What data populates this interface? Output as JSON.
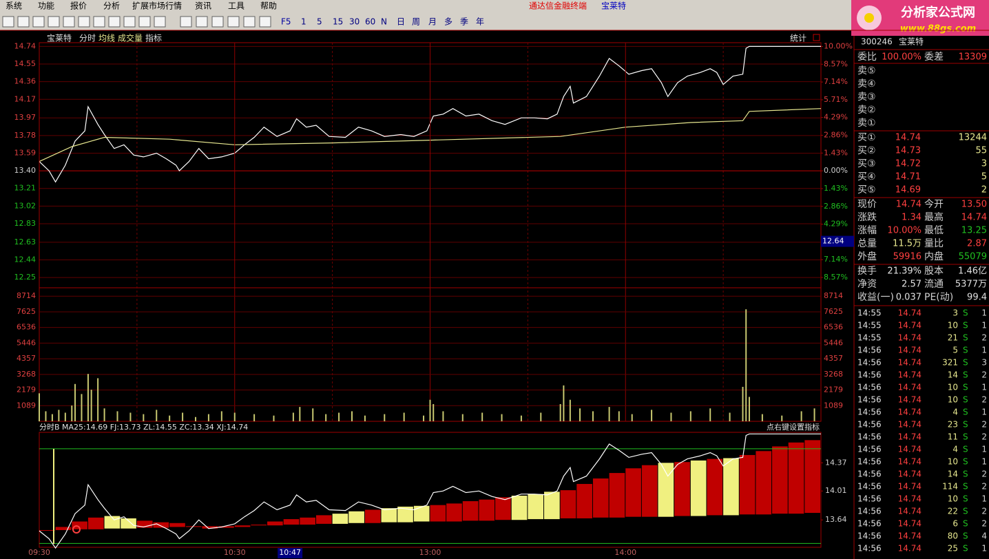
{
  "menu": [
    "系统",
    "功能",
    "报价",
    "分析",
    "扩展市场行情",
    "资讯",
    "工具",
    "帮助"
  ],
  "window_title": {
    "app": "通达信金融终端",
    "stock": "宝莱特"
  },
  "toolbar": [
    "F5",
    "1",
    "5",
    "15",
    "30",
    "60",
    "N",
    "日",
    "周",
    "月",
    "多",
    "季",
    "年"
  ],
  "chart_header": {
    "stock": "宝莱特",
    "items": [
      "分时",
      "均线",
      "成交量",
      "指标"
    ],
    "stats": "统计"
  },
  "chart_data": [
    {
      "type": "line",
      "xlim": [
        0,
        240
      ],
      "xticks": [
        {
          "value": 0,
          "label": "09:30"
        },
        {
          "value": 60,
          "label": "10:30"
        },
        {
          "value": 120,
          "label": "13:00"
        },
        {
          "value": 180,
          "label": "14:00"
        }
      ],
      "ylim": [
        12.14,
        14.78
      ],
      "yticks": [
        14.74,
        14.55,
        14.36,
        14.17,
        13.97,
        13.78,
        13.59,
        {
          "value": 13.4,
          "label": "13.40"
        },
        13.21,
        13.02,
        12.83,
        12.63,
        12.44,
        12.25
      ],
      "y2lim": [
        -9.4,
        10.3
      ],
      "y2ticks": [
        {
          "value": 10,
          "label": "10.00%"
        },
        {
          "value": 8.57,
          "label": "8.57%"
        },
        {
          "value": 7.14,
          "label": "7.14%"
        },
        {
          "value": 5.71,
          "label": "5.71%"
        },
        {
          "value": 4.29,
          "label": "4.29%"
        },
        {
          "value": 2.86,
          "label": "2.86%"
        },
        {
          "value": 1.43,
          "label": "1.43%"
        },
        {
          "value": 0,
          "label": "0.00%"
        },
        {
          "value": -1.43,
          "label": "1.43%"
        },
        {
          "value": -2.86,
          "label": "2.86%"
        },
        {
          "value": -4.29,
          "label": "4.29%"
        },
        {
          "value": -5.71,
          "label": "5.71%"
        },
        {
          "value": -7.14,
          "label": "7.14%"
        },
        {
          "value": -8.57,
          "label": "8.57%"
        }
      ],
      "series": [
        {
          "color": "#ffffff",
          "x": [
            0,
            3,
            5,
            8,
            11,
            14,
            15,
            18,
            20,
            23,
            26,
            29,
            32,
            36,
            39,
            42,
            43,
            46,
            49,
            52,
            56,
            60,
            63,
            66,
            69,
            73,
            77,
            79,
            82,
            85,
            89,
            94,
            98,
            102,
            106,
            111,
            115,
            119,
            121,
            124,
            127,
            131,
            135,
            139,
            143,
            148,
            152,
            156,
            159,
            161,
            163,
            164,
            168,
            172,
            175,
            178,
            181,
            185,
            188,
            191,
            193,
            196,
            199,
            203,
            206,
            208,
            210,
            213,
            216,
            217,
            218,
            240
          ],
          "values": [
            13.5,
            13.4,
            13.28,
            13.46,
            13.72,
            13.83,
            14.09,
            13.9,
            13.79,
            13.64,
            13.68,
            13.57,
            13.55,
            13.59,
            13.53,
            13.46,
            13.4,
            13.5,
            13.64,
            13.53,
            13.55,
            13.59,
            13.68,
            13.76,
            13.87,
            13.77,
            13.83,
            13.96,
            13.87,
            13.89,
            13.77,
            13.76,
            13.87,
            13.83,
            13.77,
            13.79,
            13.77,
            13.83,
            13.99,
            14.01,
            14.07,
            13.99,
            14.01,
            13.94,
            13.9,
            13.97,
            13.97,
            13.96,
            14.01,
            14.2,
            14.31,
            14.13,
            14.2,
            14.42,
            14.61,
            14.53,
            14.44,
            14.48,
            14.5,
            14.35,
            14.2,
            14.35,
            14.42,
            14.46,
            14.5,
            14.46,
            14.33,
            14.42,
            14.44,
            14.72,
            14.74,
            14.74
          ]
        },
        {
          "color": "#e8e890",
          "x": [
            0,
            10,
            20,
            40,
            60,
            90,
            120,
            160,
            180,
            200,
            216,
            218,
            240
          ],
          "values": [
            13.5,
            13.66,
            13.76,
            13.74,
            13.68,
            13.7,
            13.73,
            13.77,
            13.87,
            13.92,
            13.94,
            14.04,
            14.07
          ]
        }
      ],
      "cursor_price": 12.64,
      "cursor_time": {
        "value": 77,
        "label": "10:47"
      }
    },
    {
      "type": "bar",
      "xlim": [
        0,
        240
      ],
      "ylim": [
        0,
        9300
      ],
      "yticks": [
        8714,
        7625,
        6536,
        5446,
        4357,
        3268,
        2179,
        1089
      ],
      "color": "#c8c870",
      "x": [
        0,
        2,
        4,
        6,
        8,
        10,
        11,
        13,
        15,
        16,
        18,
        20,
        24,
        28,
        32,
        36,
        40,
        44,
        48,
        52,
        56,
        60,
        66,
        72,
        78,
        80,
        84,
        88,
        92,
        96,
        100,
        106,
        112,
        118,
        120,
        121,
        124,
        130,
        136,
        142,
        148,
        154,
        160,
        161,
        163,
        166,
        170,
        175,
        178,
        182,
        188,
        194,
        200,
        206,
        212,
        216,
        217,
        218,
        222,
        228,
        234,
        238
      ],
      "values": [
        1950,
        700,
        500,
        800,
        600,
        1100,
        2600,
        1900,
        3300,
        2200,
        3000,
        900,
        700,
        600,
        500,
        800,
        400,
        600,
        300,
        500,
        700,
        600,
        500,
        400,
        600,
        1000,
        900,
        500,
        600,
        700,
        400,
        500,
        600,
        400,
        1500,
        1200,
        700,
        500,
        600,
        500,
        400,
        600,
        1200,
        2500,
        1500,
        900,
        700,
        1000,
        700,
        500,
        800,
        600,
        700,
        900,
        600,
        2400,
        7800,
        1700,
        500,
        400,
        700,
        900
      ]
    },
    {
      "type": "bar",
      "title": "分时B MA25:14.69 FJ:13.73 ZL:14.55 ZC:13.34 XJ:14.74",
      "note": "点右键设置指标",
      "xlim": [
        0,
        240
      ],
      "ylim": [
        13.29,
        14.76
      ],
      "yticks": [
        14.37,
        14.01,
        13.64
      ],
      "hlines": [
        14.55,
        13.34
      ],
      "x": [
        0,
        5,
        10,
        15,
        20,
        25,
        30,
        35,
        40,
        45,
        50,
        55,
        60,
        65,
        70,
        75,
        80,
        85,
        90,
        95,
        100,
        105,
        110,
        115,
        120,
        125,
        130,
        135,
        140,
        145,
        150,
        155,
        160,
        165,
        170,
        175,
        180,
        185,
        190,
        195,
        200,
        205,
        210,
        215,
        220,
        225,
        230,
        235
      ],
      "values": [
        13.51,
        13.55,
        13.62,
        13.67,
        13.69,
        13.66,
        13.63,
        13.61,
        13.6,
        13.56,
        13.53,
        13.54,
        13.55,
        13.58,
        13.62,
        13.65,
        13.67,
        13.7,
        13.72,
        13.75,
        13.77,
        13.79,
        13.81,
        13.82,
        13.83,
        13.85,
        13.88,
        13.9,
        13.93,
        13.95,
        13.97,
        14.0,
        14.02,
        14.1,
        14.17,
        14.24,
        14.3,
        14.34,
        14.37,
        14.38,
        14.4,
        14.42,
        14.43,
        14.47,
        14.52,
        14.58,
        14.63,
        14.66
      ],
      "lower": [
        13.51,
        13.51,
        13.52,
        13.52,
        13.53,
        13.53,
        13.54,
        13.54,
        13.55,
        13.55,
        13.56,
        13.56,
        13.57,
        13.57,
        13.57,
        13.58,
        13.58,
        13.59,
        13.59,
        13.6,
        13.6,
        13.61,
        13.61,
        13.62,
        13.62,
        13.62,
        13.63,
        13.63,
        13.64,
        13.64,
        13.65,
        13.65,
        13.66,
        13.66,
        13.67,
        13.67,
        13.68,
        13.68,
        13.68,
        13.69,
        13.69,
        13.7,
        13.7,
        13.71,
        13.71,
        13.72,
        13.72,
        13.73
      ],
      "colors": [
        "#c00000",
        "#c00000",
        "#c00000",
        "#c00000",
        "#f0f080",
        "#f0f080",
        "#c00000",
        "#c00000",
        "#c00000",
        "#c00000",
        "#c00000",
        "#c00000",
        "#c00000",
        "#c00000",
        "#c00000",
        "#c00000",
        "#c00000",
        "#c00000",
        "#f0f080",
        "#f0f080",
        "#c00000",
        "#f0f080",
        "#f0f080",
        "#f0f080",
        "#c00000",
        "#c00000",
        "#c00000",
        "#c00000",
        "#c00000",
        "#f0f080",
        "#f0f080",
        "#f0f080",
        "#c00000",
        "#c00000",
        "#c00000",
        "#c00000",
        "#c00000",
        "#c00000",
        "#f0f080",
        "#c00000",
        "#f0f080",
        "#c00000",
        "#f0f080",
        "#c00000",
        "#c00000",
        "#c00000",
        "#c00000",
        "#c00000"
      ]
    }
  ],
  "logo": {
    "title": "分析家公式网",
    "url": "www.88gs.com"
  },
  "stock": {
    "code": "300246",
    "name": "宝莱特"
  },
  "quote": {
    "header": [
      "委比",
      "100.00%",
      "委差",
      "13309"
    ],
    "sell": [
      "卖⑤",
      "卖④",
      "卖③",
      "卖②",
      "卖①"
    ],
    "buy": [
      [
        "买①",
        "14.74",
        "13244"
      ],
      [
        "买②",
        "14.73",
        "55"
      ],
      [
        "买③",
        "14.72",
        "3"
      ],
      [
        "买④",
        "14.71",
        "5"
      ],
      [
        "买⑤",
        "14.69",
        "2"
      ]
    ],
    "rows": [
      [
        "现价",
        "14.74",
        "今开",
        "13.50"
      ],
      [
        "涨跌",
        "1.34",
        "最高",
        "14.74"
      ],
      [
        "涨幅",
        "10.00%",
        "最低",
        "13.25"
      ],
      [
        "总量",
        "11.5万",
        "量比",
        "2.87"
      ],
      [
        "外盘",
        "59916",
        "内盘",
        "55079"
      ]
    ],
    "rows2": [
      [
        "换手",
        "21.39%",
        "股本",
        "1.46亿"
      ],
      [
        "净资",
        "2.57",
        "流通",
        "5377万"
      ],
      [
        "收益(一)",
        "0.037",
        "PE(动)",
        "99.4"
      ]
    ]
  },
  "ticks": [
    [
      "14:55",
      "14.74",
      "3",
      "S",
      "1"
    ],
    [
      "14:55",
      "14.74",
      "10",
      "S",
      "1"
    ],
    [
      "14:55",
      "14.74",
      "21",
      "S",
      "2"
    ],
    [
      "14:56",
      "14.74",
      "5",
      "S",
      "1"
    ],
    [
      "14:56",
      "14.74",
      "321",
      "S",
      "3"
    ],
    [
      "14:56",
      "14.74",
      "14",
      "S",
      "2"
    ],
    [
      "14:56",
      "14.74",
      "10",
      "S",
      "1"
    ],
    [
      "14:56",
      "14.74",
      "10",
      "S",
      "2"
    ],
    [
      "14:56",
      "14.74",
      "4",
      "S",
      "1"
    ],
    [
      "14:56",
      "14.74",
      "23",
      "S",
      "2"
    ],
    [
      "14:56",
      "14.74",
      "11",
      "S",
      "2"
    ],
    [
      "14:56",
      "14.74",
      "4",
      "S",
      "1"
    ],
    [
      "14:56",
      "14.74",
      "10",
      "S",
      "1"
    ],
    [
      "14:56",
      "14.74",
      "14",
      "S",
      "2"
    ],
    [
      "14:56",
      "14.74",
      "114",
      "S",
      "2"
    ],
    [
      "14:56",
      "14.74",
      "10",
      "S",
      "1"
    ],
    [
      "14:56",
      "14.74",
      "22",
      "S",
      "2"
    ],
    [
      "14:56",
      "14.74",
      "6",
      "S",
      "2"
    ],
    [
      "14:56",
      "14.74",
      "80",
      "S",
      "4"
    ],
    [
      "14:56",
      "14.74",
      "25",
      "S",
      "1"
    ]
  ]
}
